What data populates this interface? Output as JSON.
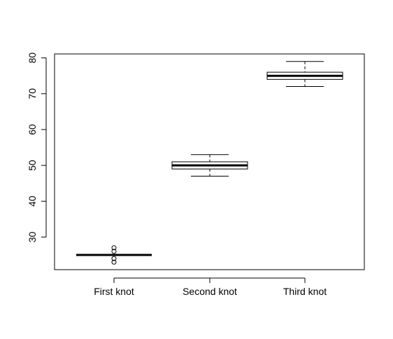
{
  "chart_data": {
    "type": "boxplot",
    "categories": [
      "First knot",
      "Second knot",
      "Third knot"
    ],
    "boxes": [
      {
        "whisker_low": 25,
        "q1": 25,
        "median": 25,
        "q3": 25,
        "whisker_high": 25,
        "outliers": [
          23,
          24,
          26,
          27
        ]
      },
      {
        "whisker_low": 47,
        "q1": 49,
        "median": 50,
        "q3": 51,
        "whisker_high": 53,
        "outliers": []
      },
      {
        "whisker_low": 72,
        "q1": 74,
        "median": 75,
        "q3": 76,
        "whisker_high": 79,
        "outliers": []
      }
    ],
    "title": "",
    "xlabel": "",
    "ylabel": "",
    "ylim": [
      20.9,
      81.1
    ],
    "yticks": [
      30,
      40,
      50,
      60,
      70,
      80
    ],
    "grid": false,
    "color": "#000000"
  }
}
